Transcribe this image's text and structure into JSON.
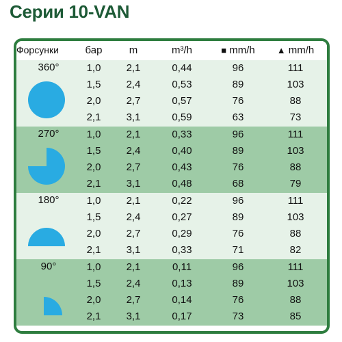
{
  "title": "Серии 10-VAN",
  "headers": {
    "nozzles": "Форсунки",
    "bar": "бар",
    "m": "m",
    "flow": "m³/h",
    "square_label": "mm/h",
    "triangle_label": "mm/h",
    "square_icon": "square-icon",
    "triangle_icon": "triangle-icon"
  },
  "colors": {
    "title": "#1d5a36",
    "border": "#2e7d3f",
    "light_band": "#e6f2e8",
    "dark_band": "#9ecba6",
    "shape": "#29abe2"
  },
  "groups": [
    {
      "angle": "360°",
      "shape_icon": "circle-360-icon",
      "rows": [
        [
          "1,0",
          "2,1",
          "0,44",
          "96",
          "111"
        ],
        [
          "1,5",
          "2,4",
          "0,53",
          "89",
          "103"
        ],
        [
          "2,0",
          "2,7",
          "0,57",
          "76",
          "88"
        ],
        [
          "2,1",
          "3,1",
          "0,59",
          "63",
          "73"
        ]
      ]
    },
    {
      "angle": "270°",
      "shape_icon": "sector-270-icon",
      "rows": [
        [
          "1,0",
          "2,1",
          "0,33",
          "96",
          "111"
        ],
        [
          "1,5",
          "2,4",
          "0,40",
          "89",
          "103"
        ],
        [
          "2,0",
          "2,7",
          "0,43",
          "76",
          "88"
        ],
        [
          "2,1",
          "3,1",
          "0,48",
          "68",
          "79"
        ]
      ]
    },
    {
      "angle": "180°",
      "shape_icon": "half-circle-180-icon",
      "rows": [
        [
          "1,0",
          "2,1",
          "0,22",
          "96",
          "111"
        ],
        [
          "1,5",
          "2,4",
          "0,27",
          "89",
          "103"
        ],
        [
          "2,0",
          "2,7",
          "0,29",
          "76",
          "88"
        ],
        [
          "2,1",
          "3,1",
          "0,33",
          "71",
          "82"
        ]
      ]
    },
    {
      "angle": "90°",
      "shape_icon": "quarter-circle-90-icon",
      "rows": [
        [
          "1,0",
          "2,1",
          "0,11",
          "96",
          "111"
        ],
        [
          "1,5",
          "2,4",
          "0,13",
          "89",
          "103"
        ],
        [
          "2,0",
          "2,7",
          "0,14",
          "76",
          "88"
        ],
        [
          "2,1",
          "3,1",
          "0,17",
          "73",
          "85"
        ]
      ]
    }
  ]
}
